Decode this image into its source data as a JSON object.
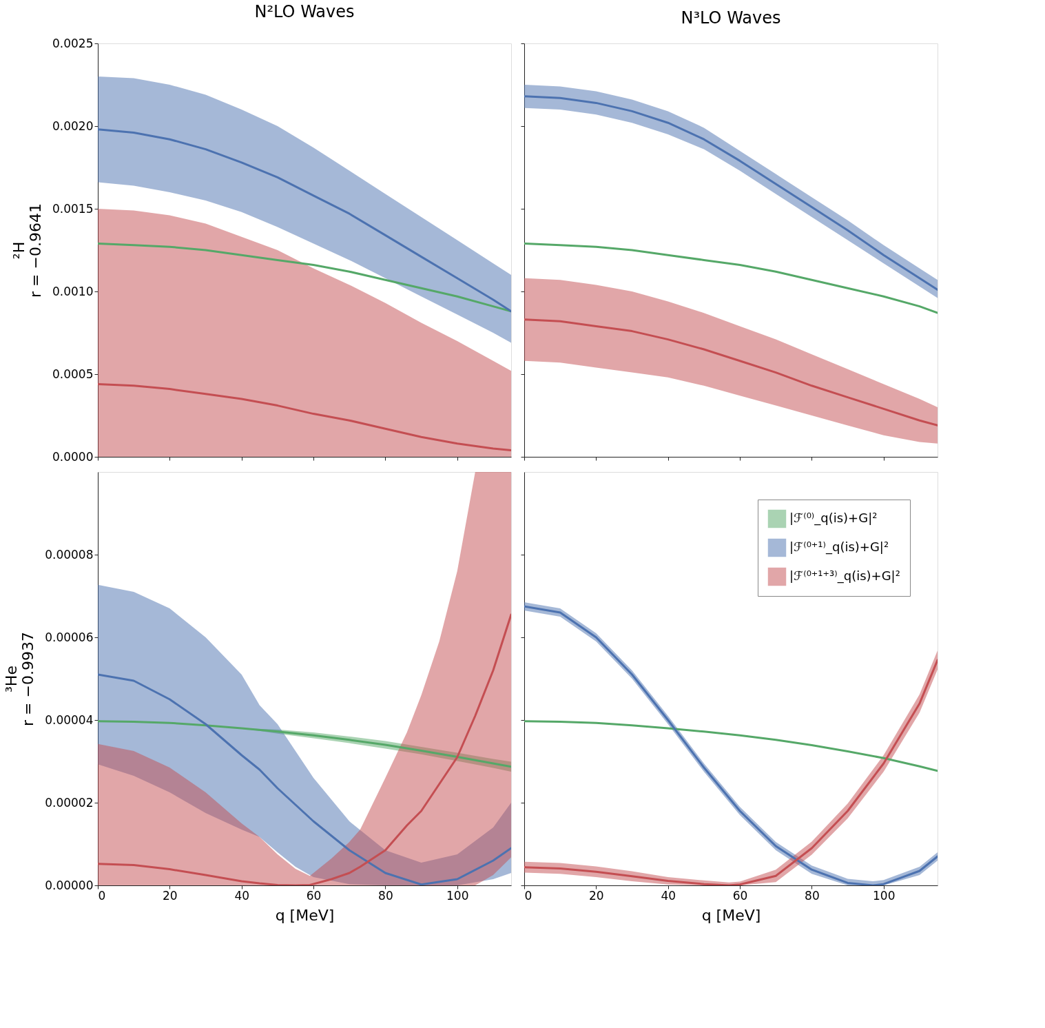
{
  "chart_data": [
    {
      "type": "line",
      "title": "N²LO Waves",
      "ylabel": "²H\nr = −0.9641",
      "xlim": [
        0,
        115
      ],
      "ylim": [
        0,
        0.0025
      ],
      "xticks": [
        0,
        20,
        40,
        60,
        80,
        100
      ],
      "yticks": [
        {
          "value": 0,
          "label": "0.0000"
        },
        {
          "value": 0.0005,
          "label": "0.0005"
        },
        {
          "value": 0.001,
          "label": "0.0010"
        },
        {
          "value": 0.0015,
          "label": "0.0015"
        },
        {
          "value": 0.002,
          "label": "0.0020"
        },
        {
          "value": 0.0025,
          "label": "0.0025"
        }
      ],
      "tick_labels": "y",
      "line_style": "solid",
      "series": [
        {
          "color": "#55a868",
          "x": [
            0,
            10,
            20,
            30,
            40,
            50,
            60,
            70,
            80,
            90,
            100,
            110,
            115
          ],
          "values": [
            0.00129,
            0.00128,
            0.00127,
            0.00125,
            0.00122,
            0.00119,
            0.00116,
            0.00112,
            0.00107,
            0.00102,
            0.00097,
            0.00091,
            0.00088
          ]
        },
        {
          "color": "#4c72b0",
          "x": [
            0,
            10,
            20,
            30,
            40,
            50,
            60,
            70,
            80,
            90,
            100,
            110,
            115
          ],
          "values": [
            0.00198,
            0.00196,
            0.00192,
            0.00186,
            0.00178,
            0.00169,
            0.00158,
            0.00147,
            0.00134,
            0.00121,
            0.00108,
            0.00095,
            0.00088
          ],
          "lower": [
            0.00166,
            0.00164,
            0.0016,
            0.00155,
            0.00148,
            0.00139,
            0.00129,
            0.00119,
            0.00108,
            0.00097,
            0.00086,
            0.00075,
            0.00069
          ],
          "upper": [
            0.0023,
            0.00229,
            0.00225,
            0.00219,
            0.0021,
            0.002,
            0.00187,
            0.00173,
            0.00159,
            0.00145,
            0.00131,
            0.00117,
            0.0011
          ]
        },
        {
          "color": "#c44e52",
          "x": [
            0,
            10,
            20,
            30,
            40,
            50,
            60,
            70,
            80,
            90,
            100,
            110,
            115
          ],
          "values": [
            0.00044,
            0.00043,
            0.00041,
            0.00038,
            0.00035,
            0.00031,
            0.00026,
            0.00022,
            0.00017,
            0.00012,
            8e-05,
            5e-05,
            4e-05
          ],
          "lower": [
            0,
            0,
            0,
            0,
            0,
            0,
            0,
            0,
            0,
            0,
            0,
            0,
            0
          ],
          "upper": [
            0.0015,
            0.00149,
            0.00146,
            0.00141,
            0.00133,
            0.00125,
            0.00114,
            0.00104,
            0.00093,
            0.00081,
            0.0007,
            0.00058,
            0.00052
          ]
        }
      ]
    },
    {
      "type": "line",
      "title": "N³LO Waves",
      "xlim": [
        0,
        115
      ],
      "ylim": [
        0,
        0.0025
      ],
      "xticks": [
        0,
        20,
        40,
        60,
        80,
        100
      ],
      "yticks": [
        {
          "value": 0,
          "label": null
        },
        {
          "value": 0.0005,
          "label": null
        },
        {
          "value": 0.001,
          "label": null
        },
        {
          "value": 0.0015,
          "label": null
        },
        {
          "value": 0.002,
          "label": null
        },
        {
          "value": 0.0025,
          "label": null
        }
      ],
      "tick_labels": false,
      "line_style": "solid",
      "series": [
        {
          "color": "#55a868",
          "x": [
            0,
            10,
            20,
            30,
            40,
            50,
            60,
            70,
            80,
            90,
            100,
            110,
            115
          ],
          "values": [
            0.00129,
            0.00128,
            0.00127,
            0.00125,
            0.00122,
            0.00119,
            0.00116,
            0.00112,
            0.00107,
            0.00102,
            0.00097,
            0.00091,
            0.00087
          ]
        },
        {
          "color": "#4c72b0",
          "x": [
            0,
            10,
            20,
            30,
            40,
            50,
            60,
            70,
            80,
            90,
            100,
            110,
            115
          ],
          "values": [
            0.00218,
            0.00217,
            0.00214,
            0.00209,
            0.00202,
            0.00192,
            0.00179,
            0.00165,
            0.00151,
            0.00137,
            0.00122,
            0.00108,
            0.00101
          ],
          "lower": [
            0.00211,
            0.0021,
            0.00207,
            0.00202,
            0.00195,
            0.00186,
            0.00173,
            0.00159,
            0.00145,
            0.00131,
            0.00117,
            0.00103,
            0.00096
          ],
          "upper": [
            0.00225,
            0.00224,
            0.00221,
            0.00216,
            0.00209,
            0.00199,
            0.00185,
            0.00171,
            0.00157,
            0.00143,
            0.00128,
            0.00114,
            0.00107
          ]
        },
        {
          "color": "#c44e52",
          "x": [
            0,
            10,
            20,
            30,
            40,
            50,
            60,
            70,
            80,
            90,
            100,
            110,
            115
          ],
          "values": [
            0.00083,
            0.00082,
            0.00079,
            0.00076,
            0.00071,
            0.00065,
            0.00058,
            0.00051,
            0.00043,
            0.00036,
            0.00029,
            0.00022,
            0.00019
          ],
          "lower": [
            0.00058,
            0.00057,
            0.00054,
            0.00051,
            0.00048,
            0.00043,
            0.00037,
            0.00031,
            0.00025,
            0.00019,
            0.00013,
            9e-05,
            8e-05
          ],
          "upper": [
            0.00108,
            0.00107,
            0.00104,
            0.001,
            0.00094,
            0.00087,
            0.00079,
            0.00071,
            0.00062,
            0.00053,
            0.00044,
            0.00035,
            0.0003
          ]
        }
      ]
    },
    {
      "type": "line",
      "ylabel": "³He\nr = −0.9937",
      "xlabel": "q [MeV]",
      "xlim": [
        0,
        115
      ],
      "ylim": [
        0,
        0.0001
      ],
      "xticks": [
        0,
        20,
        40,
        60,
        80,
        100
      ],
      "yticks": [
        {
          "value": 0,
          "label": "0.00000"
        },
        {
          "value": 2e-05,
          "label": "0.00002"
        },
        {
          "value": 4e-05,
          "label": "0.00004"
        },
        {
          "value": 6e-05,
          "label": "0.00006"
        },
        {
          "value": 8e-05,
          "label": "0.00008"
        }
      ],
      "line_style": "solid",
      "series": [
        {
          "color": "#55a868",
          "x": [
            0,
            10,
            20,
            30,
            40,
            50,
            60,
            70,
            80,
            90,
            100,
            110,
            115
          ],
          "values": [
            3.97e-05,
            3.96e-05,
            3.93e-05,
            3.87e-05,
            3.8e-05,
            3.72e-05,
            3.63e-05,
            3.52e-05,
            3.4e-05,
            3.26e-05,
            3.11e-05,
            2.95e-05,
            2.87e-05
          ],
          "lower": [
            3.97e-05,
            3.96e-05,
            3.93e-05,
            3.87e-05,
            3.8e-05,
            3.67e-05,
            3.56e-05,
            3.44e-05,
            3.31e-05,
            3.17e-05,
            3.01e-05,
            2.84e-05,
            2.75e-05
          ],
          "upper": [
            3.97e-05,
            3.96e-05,
            3.93e-05,
            3.87e-05,
            3.8e-05,
            3.77e-05,
            3.7e-05,
            3.6e-05,
            3.49e-05,
            3.35e-05,
            3.21e-05,
            3.06e-05,
            2.99e-05
          ]
        },
        {
          "color": "#4c72b0",
          "x": [
            0,
            10,
            20,
            30,
            40,
            45,
            50,
            55,
            60,
            70,
            80,
            90,
            100,
            110,
            115
          ],
          "values": [
            5.1e-05,
            4.95e-05,
            4.5e-05,
            3.9e-05,
            3.15e-05,
            2.8e-05,
            2.35e-05,
            1.95e-05,
            1.55e-05,
            8.5e-06,
            3e-06,
            2e-07,
            1.5e-06,
            6e-06,
            9e-06
          ],
          "lower": [
            2.93e-05,
            2.65e-05,
            2.25e-05,
            1.75e-05,
            1.35e-05,
            1.17e-05,
            8e-06,
            4.5e-06,
            2e-06,
            3e-07,
            0,
            0,
            0,
            1.5e-06,
            3e-06
          ],
          "upper": [
            7.27e-05,
            7.1e-05,
            6.7e-05,
            6e-05,
            5.1e-05,
            4.36e-05,
            3.9e-05,
            3.25e-05,
            2.6e-05,
            1.55e-05,
            8.5e-06,
            5.5e-06,
            7.5e-06,
            1.4e-05,
            2e-05
          ]
        },
        {
          "color": "#c44e52",
          "x": [
            0,
            10,
            20,
            30,
            40,
            45,
            50,
            55,
            59,
            65,
            70,
            73,
            80,
            86,
            90,
            95,
            100,
            105,
            110,
            115
          ],
          "values": [
            5.2e-06,
            4.9e-06,
            3.9e-06,
            2.5e-06,
            1e-06,
            5e-07,
            1e-07,
            0,
            1e-07,
            1.5e-06,
            3e-06,
            4.5e-06,
            8.5e-06,
            1.45e-05,
            1.8e-05,
            2.45e-05,
            3.1e-05,
            4.1e-05,
            5.2e-05,
            6.55e-05
          ],
          "lower": [
            0,
            0,
            0,
            0,
            0,
            0,
            0,
            0,
            0,
            0,
            0,
            0,
            0,
            0,
            0,
            0,
            0,
            0,
            2.5e-06,
            6.8e-06
          ],
          "upper": [
            3.42e-05,
            3.25e-05,
            2.85e-05,
            2.25e-05,
            1.5e-05,
            1.17e-05,
            7.5e-06,
            4e-06,
            2.3e-06,
            6.5e-06,
            1.05e-05,
            1.35e-05,
            2.6e-05,
            3.7e-05,
            4.6e-05,
            5.9e-05,
            7.6e-05,
            0.0001,
            0.0001,
            0.0001
          ]
        }
      ]
    },
    {
      "type": "line",
      "xlabel": "q [MeV]",
      "xlim": [
        0,
        115
      ],
      "ylim": [
        0,
        0.0001
      ],
      "xticks": [
        0,
        20,
        40,
        60,
        80,
        100
      ],
      "yticks": [
        {
          "value": 0,
          "label": null
        },
        {
          "value": 2e-05,
          "label": null
        },
        {
          "value": 4e-05,
          "label": null
        },
        {
          "value": 6e-05,
          "label": null
        },
        {
          "value": 8e-05,
          "label": null
        }
      ],
      "tick_labels": "x",
      "line_style": "solid",
      "legend": "top right",
      "series": [
        {
          "name": "|ℱ⁽⁰⁾_q(is)+G|²",
          "color": "#55a868",
          "x": [
            0,
            10,
            20,
            30,
            40,
            50,
            60,
            70,
            80,
            90,
            100,
            110,
            115
          ],
          "values": [
            3.97e-05,
            3.96e-05,
            3.93e-05,
            3.87e-05,
            3.8e-05,
            3.72e-05,
            3.63e-05,
            3.52e-05,
            3.39e-05,
            3.24e-05,
            3.08e-05,
            2.88e-05,
            2.77e-05
          ]
        },
        {
          "name": "|ℱ⁽⁰⁺¹⁾_q(is)+G|²",
          "color": "#4c72b0",
          "x": [
            0,
            10,
            20,
            30,
            40,
            50,
            60,
            70,
            80,
            90,
            97,
            100,
            110,
            115
          ],
          "values": [
            6.75e-05,
            6.6e-05,
            6e-05,
            5.1e-05,
            4e-05,
            2.85e-05,
            1.8e-05,
            9.5e-06,
            3.8e-06,
            6e-07,
            0,
            3e-07,
            3.5e-06,
            7e-06
          ],
          "lower": [
            6.65e-05,
            6.5e-05,
            5.9e-05,
            5e-05,
            3.9e-05,
            2.75e-05,
            1.7e-05,
            8.5e-06,
            2.8e-06,
            0,
            0,
            0,
            2.5e-06,
            6e-06
          ],
          "upper": [
            6.85e-05,
            6.7e-05,
            6.1e-05,
            5.2e-05,
            4.1e-05,
            2.95e-05,
            1.9e-05,
            1.05e-05,
            4.8e-06,
            1.6e-06,
            1e-06,
            1.3e-06,
            4.5e-06,
            8e-06
          ]
        },
        {
          "name": "|ℱ⁽⁰⁺¹⁺³⁾_q(is)+G|²",
          "color": "#c44e52",
          "x": [
            0,
            10,
            20,
            30,
            40,
            50,
            57,
            60,
            70,
            80,
            90,
            100,
            110,
            115
          ],
          "values": [
            4.4e-06,
            4.1e-06,
            3.3e-06,
            2.2e-06,
            1.1e-06,
            3e-07,
            0,
            2e-07,
            2.3e-06,
            9e-06,
            1.8e-05,
            2.95e-05,
            4.4e-05,
            5.45e-05
          ],
          "lower": [
            3.1e-06,
            2.8e-06,
            2e-06,
            1e-06,
            2e-07,
            0,
            0,
            0,
            8e-07,
            7.4e-06,
            1.62e-05,
            2.75e-05,
            4.18e-05,
            5.22e-05
          ],
          "upper": [
            5.7e-06,
            5.4e-06,
            4.6e-06,
            3.4e-06,
            2e-06,
            1.2e-06,
            7e-07,
            9e-07,
            3.8e-06,
            1.06e-05,
            1.98e-05,
            3.15e-05,
            4.62e-05,
            5.68e-05
          ]
        }
      ]
    }
  ]
}
